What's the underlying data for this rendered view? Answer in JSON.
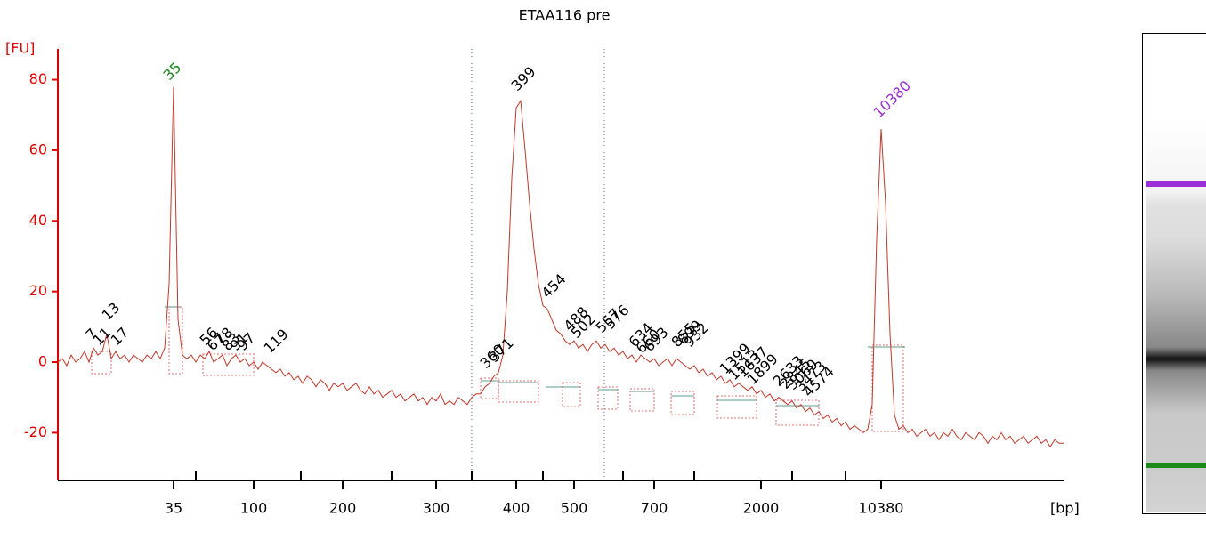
{
  "chart_data": {
    "type": "line",
    "title": "ETAA116 pre",
    "y_label": "[FU]",
    "x_label": "[bp]",
    "color": "#c0392b",
    "ylim": [
      -33.5,
      88.7
    ],
    "yticks": [
      -20,
      0,
      20,
      40,
      60,
      80
    ],
    "categories": [
      null,
      null,
      null,
      null,
      null,
      null,
      null,
      null,
      null,
      null,
      null,
      null,
      null,
      null,
      null,
      null,
      null,
      null,
      null,
      null,
      null,
      null,
      null,
      null,
      null,
      null,
      "35",
      null,
      null,
      null,
      null,
      null,
      null,
      null,
      null,
      null,
      null,
      null,
      null,
      null,
      null,
      null,
      null,
      null,
      "100",
      null,
      null,
      null,
      null,
      null,
      null,
      null,
      null,
      null,
      null,
      null,
      null,
      null,
      null,
      null,
      null,
      null,
      null,
      null,
      "200",
      null,
      null,
      null,
      null,
      null,
      null,
      null,
      null,
      null,
      null,
      null,
      null,
      null,
      null,
      null,
      null,
      null,
      null,
      null,
      null,
      "300",
      null,
      null,
      null,
      null,
      null,
      null,
      null,
      null,
      null,
      null,
      null,
      null,
      null,
      null,
      null,
      null,
      null,
      "400",
      null,
      null,
      null,
      null,
      null,
      null,
      null,
      null,
      null,
      null,
      null,
      null,
      "500",
      null,
      null,
      null,
      null,
      null,
      null,
      null,
      null,
      null,
      null,
      null,
      null,
      null,
      null,
      null,
      null,
      null,
      "700",
      null,
      null,
      null,
      null,
      null,
      null,
      null,
      null,
      null,
      null,
      null,
      null,
      null,
      null,
      null,
      null,
      null,
      null,
      null,
      null,
      null,
      null,
      null,
      "2000",
      null,
      null,
      null,
      null,
      null,
      null,
      null,
      null,
      null,
      null,
      null,
      null,
      null,
      null,
      null,
      null,
      null,
      null,
      null,
      null,
      null,
      null,
      null,
      null,
      null,
      null,
      "10380",
      null,
      null,
      null,
      null,
      null,
      null,
      null,
      null,
      null,
      null,
      null,
      null,
      null,
      null,
      null,
      null,
      null,
      null,
      null,
      null,
      null,
      null,
      null,
      null,
      null,
      null,
      null,
      null,
      null,
      null,
      null,
      null,
      null,
      null,
      null,
      null,
      null,
      null,
      null,
      null,
      null
    ],
    "values": [
      0,
      1,
      -1,
      2,
      0,
      1,
      3,
      0,
      4,
      2,
      3,
      8,
      1,
      3,
      1,
      2,
      0,
      2,
      1,
      0,
      2,
      1,
      3,
      1,
      4,
      22,
      78,
      12,
      2,
      1,
      2,
      0,
      2,
      1,
      3,
      0,
      1,
      2,
      -1,
      1,
      2,
      0,
      1,
      -1,
      0,
      -2,
      0,
      -1,
      -2,
      -3,
      -2,
      -4,
      -3,
      -5,
      -4,
      -6,
      -4,
      -5,
      -7,
      -5,
      -6,
      -8,
      -6,
      -7,
      -6,
      -8,
      -7,
      -6,
      -8,
      -9,
      -7,
      -9,
      -8,
      -10,
      -9,
      -8,
      -10,
      -9,
      -11,
      -10,
      -9,
      -11,
      -10,
      -12,
      -10,
      -11,
      -9,
      -12,
      -11,
      -12,
      -10,
      -11,
      -12,
      -10,
      -9,
      -9,
      -7,
      -6,
      -4,
      -3,
      2,
      20,
      52,
      72,
      74,
      60,
      45,
      32,
      22,
      16,
      15,
      12,
      9,
      8,
      6,
      5,
      6,
      4,
      5,
      3,
      5,
      6,
      4,
      5,
      3,
      4,
      2,
      3,
      1,
      2,
      0,
      2,
      1,
      0,
      1,
      -1,
      0,
      1,
      -1,
      1,
      0,
      -1,
      -2,
      -1,
      -3,
      -2,
      -4,
      -3,
      -5,
      -4,
      -6,
      -5,
      -7,
      -6,
      -7,
      -8,
      -7,
      -9,
      -8,
      -10,
      -9,
      -11,
      -10,
      -11,
      -12,
      -11,
      -13,
      -12,
      -14,
      -13,
      -15,
      -14,
      -16,
      -15,
      -17,
      -16,
      -18,
      -17,
      -19,
      -18,
      -19,
      -20,
      -19,
      -12,
      35,
      66,
      45,
      8,
      -15,
      -19,
      -18,
      -20,
      -19,
      -21,
      -20,
      -19,
      -21,
      -20,
      -22,
      -20,
      -21,
      -19,
      -21,
      -22,
      -20,
      -21,
      -22,
      -20,
      -21,
      -23,
      -21,
      -22,
      -20,
      -22,
      -21,
      -23,
      -22,
      -21,
      -23,
      -22,
      -21,
      -23,
      -22,
      -24,
      -22,
      -23,
      -23
    ],
    "annotations": [
      {
        "text": "7"
      },
      {
        "text": "11"
      },
      {
        "text": "13"
      },
      {
        "text": "17"
      },
      {
        "text": "35",
        "color": "#1a8a1a"
      },
      {
        "text": "56"
      },
      {
        "text": "67"
      },
      {
        "text": "78"
      },
      {
        "text": "83"
      },
      {
        "text": "91"
      },
      {
        "text": "97"
      },
      {
        "text": "119"
      },
      {
        "text": "360"
      },
      {
        "text": "371"
      },
      {
        "text": "399"
      },
      {
        "text": "454"
      },
      {
        "text": "488"
      },
      {
        "text": "502"
      },
      {
        "text": "557"
      },
      {
        "text": "576"
      },
      {
        "text": "634"
      },
      {
        "text": "660"
      },
      {
        "text": "693"
      },
      {
        "text": "855"
      },
      {
        "text": "899"
      },
      {
        "text": "932"
      },
      {
        "text": "1399"
      },
      {
        "text": "1513"
      },
      {
        "text": "1637"
      },
      {
        "text": "1899"
      },
      {
        "text": "2633"
      },
      {
        "text": "2845"
      },
      {
        "text": "3069"
      },
      {
        "text": "3473"
      },
      {
        "text": "4574"
      },
      {
        "text": "10380",
        "color": "#9b30d9"
      }
    ]
  }
}
